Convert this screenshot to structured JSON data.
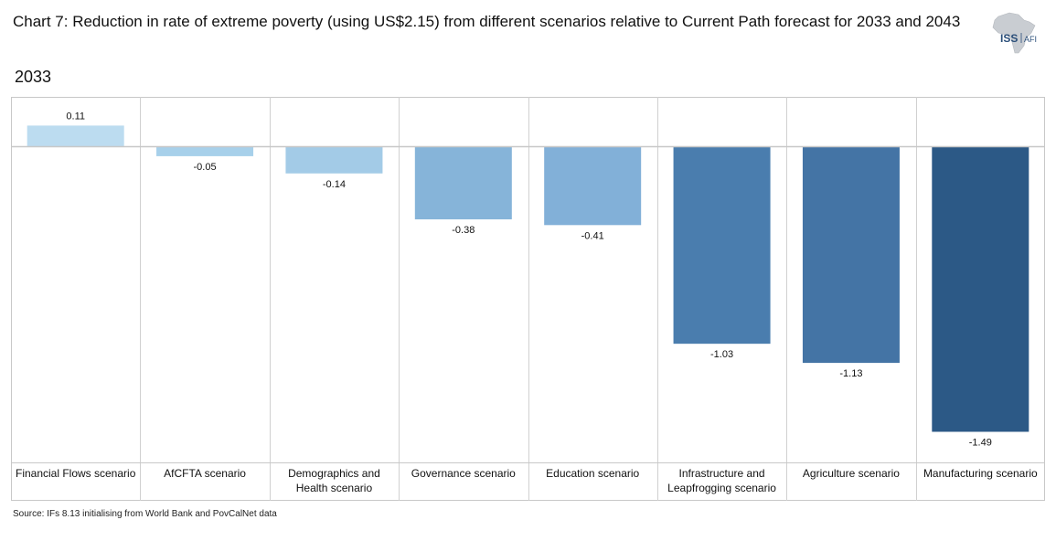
{
  "header": {
    "title": "Chart 7: Reduction in rate of extreme poverty (using US$2.15) from different scenarios relative to Current Path forecast for 2033 and 2043",
    "logo_text": "ISS",
    "logo_subtext": "AFI"
  },
  "chart_data": {
    "type": "bar",
    "title": "2033",
    "categories": [
      "Financial Flows scenario",
      "AfCFTA scenario",
      "Demographics and Health scenario",
      "Governance scenario",
      "Education scenario",
      "Infrastructure and Leapfrogging scenario",
      "Agriculture scenario",
      "Manufacturing scenario"
    ],
    "values": [
      0.11,
      -0.05,
      -0.14,
      -0.38,
      -0.41,
      -1.03,
      -1.13,
      -1.49
    ],
    "data_labels": [
      "0.11",
      "-0.05",
      "-0.14",
      "-0.38",
      "-0.41",
      "-1.03",
      "-1.13",
      "-1.49"
    ],
    "colors": [
      "#bcdcf0",
      "#a7d0ea",
      "#a3cbe7",
      "#86b4d9",
      "#82b0d8",
      "#4a7dae",
      "#4474a5",
      "#2c5986"
    ],
    "ylim": [
      -1.65,
      0.26
    ],
    "grid": "vertical-separators",
    "legend": "none"
  },
  "footer": {
    "source": "Source: IFs 8.13 initialising from World Bank and PovCalNet data"
  }
}
